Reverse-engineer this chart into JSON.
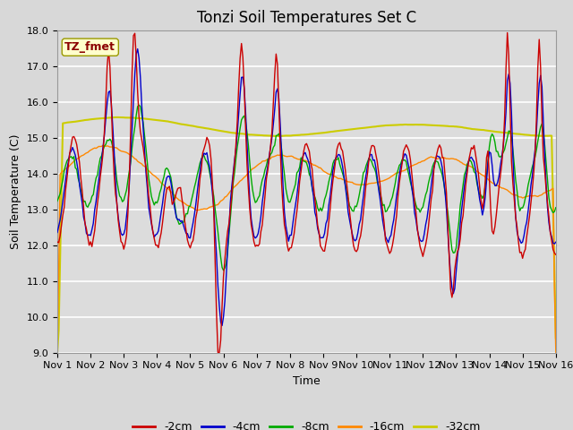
{
  "title": "Tonzi Soil Temperatures Set C",
  "xlabel": "Time",
  "ylabel": "Soil Temperature (C)",
  "ylim": [
    9.0,
    18.0
  ],
  "yticks": [
    9.0,
    10.0,
    11.0,
    12.0,
    13.0,
    14.0,
    15.0,
    16.0,
    17.0,
    18.0
  ],
  "xtick_labels": [
    "Nov 1",
    "Nov 2",
    "Nov 3",
    "Nov 4",
    "Nov 5",
    "Nov 6",
    "Nov 7",
    "Nov 8",
    "Nov 9",
    "Nov 10",
    "Nov 11",
    "Nov 12",
    "Nov 13",
    "Nov 14",
    "Nov 15",
    "Nov 16"
  ],
  "legend_label": "TZ_fmet",
  "series_labels": [
    "-2cm",
    "-4cm",
    "-8cm",
    "-16cm",
    "-32cm"
  ],
  "series_colors": [
    "#cc0000",
    "#0000cc",
    "#00aa00",
    "#ff8800",
    "#cccc00"
  ],
  "fig_bg_color": "#d8d8d8",
  "plot_bg_color": "#dcdcdc",
  "days": 15,
  "title_fontsize": 12,
  "axis_fontsize": 9,
  "tick_fontsize": 8,
  "legend_fontsize": 9
}
